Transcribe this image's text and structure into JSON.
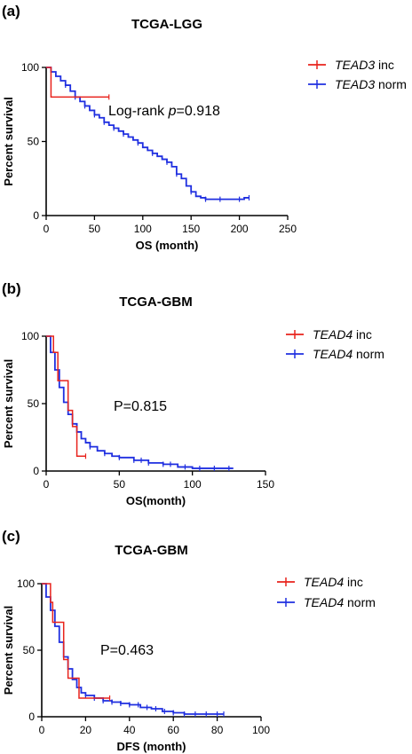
{
  "chart_data": [
    {
      "panel_label": "(a)",
      "type": "line",
      "title": "TCGA-LGG",
      "xlabel": "OS (month)",
      "ylabel": "Percent survival",
      "xlim": [
        0,
        250
      ],
      "ylim": [
        0,
        100
      ],
      "xticks": [
        0,
        50,
        100,
        150,
        200,
        250
      ],
      "yticks": [
        0,
        50,
        100
      ],
      "annotation": {
        "prefix": "Log-rank ",
        "italic": "p",
        "suffix": "=0.918"
      },
      "series": [
        {
          "gene": "TEAD3",
          "status": " inc",
          "color": "#e8231c",
          "x": [
            0,
            5,
            5,
            65
          ],
          "y": [
            100,
            100,
            80,
            80
          ],
          "censor_x": [
            65
          ]
        },
        {
          "gene": "TEAD3",
          "status": " norm",
          "color": "#1f2fe0",
          "x": [
            0,
            5,
            10,
            15,
            20,
            25,
            30,
            35,
            40,
            45,
            50,
            55,
            60,
            65,
            70,
            75,
            80,
            85,
            90,
            95,
            100,
            105,
            110,
            115,
            120,
            125,
            130,
            135,
            140,
            145,
            150,
            155,
            160,
            165,
            170,
            175,
            180,
            185,
            190,
            195,
            200,
            205,
            210
          ],
          "y": [
            100,
            97,
            94,
            91,
            88,
            84,
            80,
            77,
            74,
            71,
            68,
            66,
            63,
            61,
            59,
            57,
            55,
            53,
            51,
            49,
            46,
            44,
            42,
            40,
            38,
            36,
            33,
            28,
            25,
            20,
            16,
            13,
            12,
            11,
            11,
            11,
            11,
            11,
            11,
            11,
            11,
            12,
            12
          ],
          "censor_x": [
            20,
            30,
            40,
            50,
            60,
            70,
            80,
            95,
            110,
            125,
            135,
            150,
            165,
            180,
            200,
            210
          ]
        }
      ]
    },
    {
      "panel_label": "(b)",
      "type": "line",
      "title": "TCGA-GBM",
      "xlabel": "OS(month)",
      "ylabel": "Percent survival",
      "xlim": [
        0,
        150
      ],
      "ylim": [
        0,
        100
      ],
      "xticks": [
        0,
        50,
        100,
        150
      ],
      "yticks": [
        0,
        50,
        100
      ],
      "annotation": {
        "prefix": "P=0.815",
        "italic": "",
        "suffix": ""
      },
      "series": [
        {
          "gene": "TEAD4",
          "status": " inc",
          "color": "#e8231c",
          "x": [
            0,
            5,
            5,
            8,
            8,
            12,
            12,
            15,
            15,
            18,
            18,
            21,
            21,
            27
          ],
          "y": [
            100,
            100,
            88,
            88,
            67,
            67,
            67,
            67,
            45,
            45,
            33,
            33,
            11,
            11
          ],
          "censor_x": [
            27
          ]
        },
        {
          "gene": "TEAD4",
          "status": " norm",
          "color": "#1f2fe0",
          "x": [
            0,
            3,
            6,
            9,
            12,
            15,
            18,
            21,
            24,
            27,
            30,
            35,
            40,
            45,
            50,
            60,
            70,
            80,
            90,
            100,
            110,
            120,
            128
          ],
          "y": [
            100,
            88,
            75,
            62,
            51,
            42,
            35,
            29,
            24,
            21,
            18,
            15,
            13,
            11,
            10,
            8,
            6,
            5,
            3,
            2,
            2,
            2,
            2
          ],
          "censor_x": [
            30,
            40,
            50,
            60,
            65,
            70,
            80,
            85,
            95,
            105,
            115,
            125
          ]
        }
      ]
    },
    {
      "panel_label": "(c)",
      "type": "line",
      "title": "TCGA-GBM",
      "xlabel": "DFS (month)",
      "ylabel": "Percent survival",
      "xlim": [
        0,
        100
      ],
      "ylim": [
        0,
        100
      ],
      "xticks": [
        0,
        20,
        40,
        60,
        80,
        100
      ],
      "yticks": [
        0,
        50,
        100
      ],
      "annotation": {
        "prefix": "P=0.463",
        "italic": "",
        "suffix": ""
      },
      "series": [
        {
          "gene": "TEAD4",
          "status": " inc",
          "color": "#e8231c",
          "x": [
            0,
            4,
            4,
            5,
            5,
            10,
            10,
            12,
            12,
            17,
            17,
            31
          ],
          "y": [
            100,
            100,
            86,
            86,
            71,
            71,
            43,
            43,
            29,
            29,
            14,
            14
          ],
          "censor_x": [
            31
          ]
        },
        {
          "gene": "TEAD4",
          "status": " norm",
          "color": "#1f2fe0",
          "x": [
            0,
            2,
            4,
            6,
            8,
            10,
            12,
            14,
            16,
            18,
            20,
            24,
            28,
            32,
            36,
            40,
            45,
            50,
            55,
            60,
            65,
            70,
            75,
            80,
            83
          ],
          "y": [
            100,
            90,
            80,
            68,
            56,
            45,
            36,
            28,
            22,
            18,
            16,
            14,
            12,
            11,
            10,
            9,
            7,
            6,
            4,
            3,
            2,
            2,
            2,
            2,
            2
          ],
          "censor_x": [
            20,
            24,
            28,
            32,
            36,
            40,
            44,
            48,
            52,
            56,
            60,
            65,
            70,
            75,
            80,
            83
          ]
        }
      ]
    }
  ]
}
